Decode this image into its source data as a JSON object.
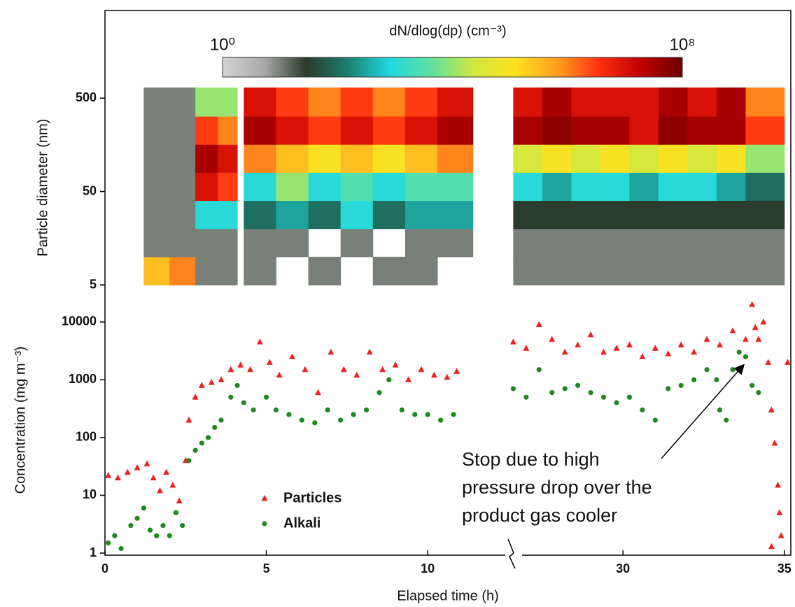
{
  "chart_data": [
    {
      "type": "heatmap",
      "colorbar_title": "dN/dlog(dp) (cm⁻³)",
      "ylabel": "Particle diameter (nm)",
      "ylim": [
        5,
        650
      ],
      "yticks": [
        5,
        50,
        500
      ],
      "log_y": true,
      "clim": [
        1,
        100000000
      ],
      "cticks": [
        {
          "value": 1,
          "label": "10⁰"
        },
        {
          "value": 100000000,
          "label": "10⁸"
        }
      ],
      "colormap": [
        "#d4d4d4",
        "#a8a8a8",
        "#2a3a2a",
        "#1a8070",
        "#20d8e0",
        "#60e0a0",
        "#d0e840",
        "#ffe020",
        "#ffa020",
        "#ff3010",
        "#c00000",
        "#6a0000"
      ],
      "x_bins": [
        1.2,
        2.0,
        2.8,
        3.5,
        4.1,
        4.3,
        5.3,
        6.3,
        7.3,
        8.3,
        9.3,
        10.3,
        11.4,
        26.6,
        27.5,
        28.4,
        29.3,
        30.2,
        31.1,
        32.0,
        32.9,
        33.8,
        35.0
      ],
      "y_bins": [
        5,
        10,
        20,
        40,
        80,
        160,
        320,
        650
      ],
      "z": [
        [
          300000.0,
          1000000.0,
          10,
          10,
          null,
          10,
          null,
          10,
          null,
          10,
          10,
          null,
          null,
          10,
          10,
          10,
          10,
          10,
          10,
          10,
          10,
          10
        ],
        [
          10,
          10,
          10,
          10,
          null,
          10,
          10,
          null,
          10,
          null,
          10,
          10,
          null,
          10,
          10,
          10,
          10,
          10,
          10,
          10,
          10,
          10
        ],
        [
          10,
          10,
          1000,
          1000,
          null,
          100,
          300,
          100,
          1000,
          100,
          300,
          300,
          null,
          30,
          30,
          30,
          30,
          30,
          30,
          30,
          30,
          30
        ],
        [
          10,
          10,
          10000000.0,
          3000000.0,
          null,
          1000,
          10000.0,
          1000,
          3000,
          1000,
          3000,
          3000,
          null,
          1000,
          300,
          1000,
          1000,
          300,
          1000,
          1000,
          300,
          100
        ],
        [
          10,
          10,
          30000000.0,
          10000000.0,
          null,
          1000000.0,
          300000.0,
          100000.0,
          300000.0,
          100000.0,
          300000.0,
          1000000.0,
          null,
          30000.0,
          100000.0,
          30000.0,
          100000.0,
          30000.0,
          100000.0,
          30000.0,
          100000.0,
          10000.0
        ],
        [
          10,
          10,
          3000000.0,
          1000000.0,
          null,
          30000000.0,
          10000000.0,
          3000000.0,
          10000000.0,
          3000000.0,
          10000000.0,
          30000000.0,
          null,
          30000000.0,
          50000000.0,
          30000000.0,
          30000000.0,
          10000000.0,
          50000000.0,
          30000000.0,
          30000000.0,
          3000000.0
        ],
        [
          10,
          10,
          10000.0,
          10000.0,
          null,
          10000000.0,
          3000000.0,
          1000000.0,
          3000000.0,
          1000000.0,
          3000000.0,
          10000000.0,
          null,
          10000000.0,
          30000000.0,
          10000000.0,
          10000000.0,
          10000000.0,
          30000000.0,
          10000000.0,
          30000000.0,
          1000000.0
        ]
      ]
    },
    {
      "type": "scatter",
      "xlabel": "Elapsed time (h)",
      "ylabel": "Concentration (mg m⁻³)",
      "x_segments": [
        [
          0,
          12.65
        ],
        [
          26.6,
          35.2
        ]
      ],
      "xticks": [
        0,
        5,
        10,
        30,
        35
      ],
      "ylim": [
        1,
        35000
      ],
      "yticks": [
        1,
        10,
        100,
        1000,
        10000
      ],
      "log_y": true,
      "annotation": [
        "Stop due to high",
        "pressure drop over the",
        "product gas cooler"
      ],
      "series": [
        {
          "name": "Particles",
          "color": "#ee2222",
          "marker": "triangle",
          "x": [
            0.1,
            0.4,
            0.7,
            1.0,
            1.3,
            1.5,
            1.7,
            1.9,
            2.1,
            2.3,
            2.5,
            2.6,
            2.8,
            3.0,
            3.3,
            3.6,
            3.9,
            4.2,
            4.5,
            4.8,
            5.1,
            5.4,
            5.8,
            6.2,
            6.6,
            7.0,
            7.4,
            7.8,
            8.2,
            8.6,
            9.0,
            9.4,
            9.8,
            10.2,
            10.6,
            10.9,
            26.6,
            27.0,
            27.4,
            27.8,
            28.2,
            28.6,
            29.0,
            29.4,
            29.8,
            30.2,
            30.6,
            31.0,
            31.4,
            31.8,
            32.2,
            32.6,
            33.0,
            33.4,
            33.8,
            34.0,
            34.1,
            34.2,
            34.35,
            34.5,
            34.6,
            34.6,
            34.7,
            34.8,
            34.85,
            34.9,
            35.1
          ],
          "values": [
            22,
            20,
            25,
            30,
            35,
            20,
            12,
            25,
            15,
            8,
            40,
            200,
            500,
            800,
            900,
            1000,
            1500,
            1800,
            1500,
            4500,
            2000,
            1200,
            2500,
            1500,
            600,
            3000,
            1500,
            1200,
            3000,
            1500,
            1800,
            1000,
            1500,
            1200,
            1100,
            1400,
            4500,
            3500,
            9000,
            5000,
            3000,
            4000,
            6000,
            3000,
            3500,
            4000,
            2500,
            3500,
            2800,
            4000,
            3000,
            5000,
            4000,
            7000,
            5000,
            20000,
            8000,
            5000,
            10000,
            2000,
            300,
            1.3,
            80,
            15,
            5,
            2,
            2000
          ]
        },
        {
          "name": "Alkali",
          "color": "#1e8a1e",
          "marker": "circle",
          "x": [
            0.1,
            0.3,
            0.5,
            0.8,
            1.0,
            1.2,
            1.4,
            1.6,
            1.8,
            2.0,
            2.2,
            2.4,
            2.6,
            2.8,
            3.0,
            3.2,
            3.4,
            3.6,
            3.9,
            4.1,
            4.3,
            4.6,
            5.0,
            5.3,
            5.7,
            6.1,
            6.5,
            6.9,
            7.3,
            7.7,
            8.1,
            8.5,
            8.8,
            9.2,
            9.6,
            10.0,
            10.4,
            10.8,
            26.6,
            27.0,
            27.4,
            27.8,
            28.2,
            28.6,
            29.0,
            29.4,
            29.8,
            30.2,
            30.6,
            31.0,
            31.4,
            31.8,
            32.2,
            32.6,
            32.9,
            33.0,
            33.2,
            33.4,
            33.6,
            33.8,
            34.0,
            34.2
          ],
          "values": [
            1.5,
            2,
            1.2,
            3,
            4,
            6,
            2.5,
            2,
            3,
            2,
            5,
            3,
            40,
            60,
            80,
            100,
            150,
            200,
            500,
            800,
            400,
            300,
            500,
            300,
            250,
            200,
            180,
            300,
            200,
            250,
            300,
            600,
            1000,
            300,
            250,
            250,
            200,
            250,
            700,
            500,
            1500,
            600,
            700,
            800,
            600,
            500,
            400,
            500,
            300,
            200,
            700,
            800,
            1000,
            1500,
            1000,
            300,
            200,
            1500,
            3000,
            2500,
            800,
            600
          ]
        }
      ]
    }
  ]
}
